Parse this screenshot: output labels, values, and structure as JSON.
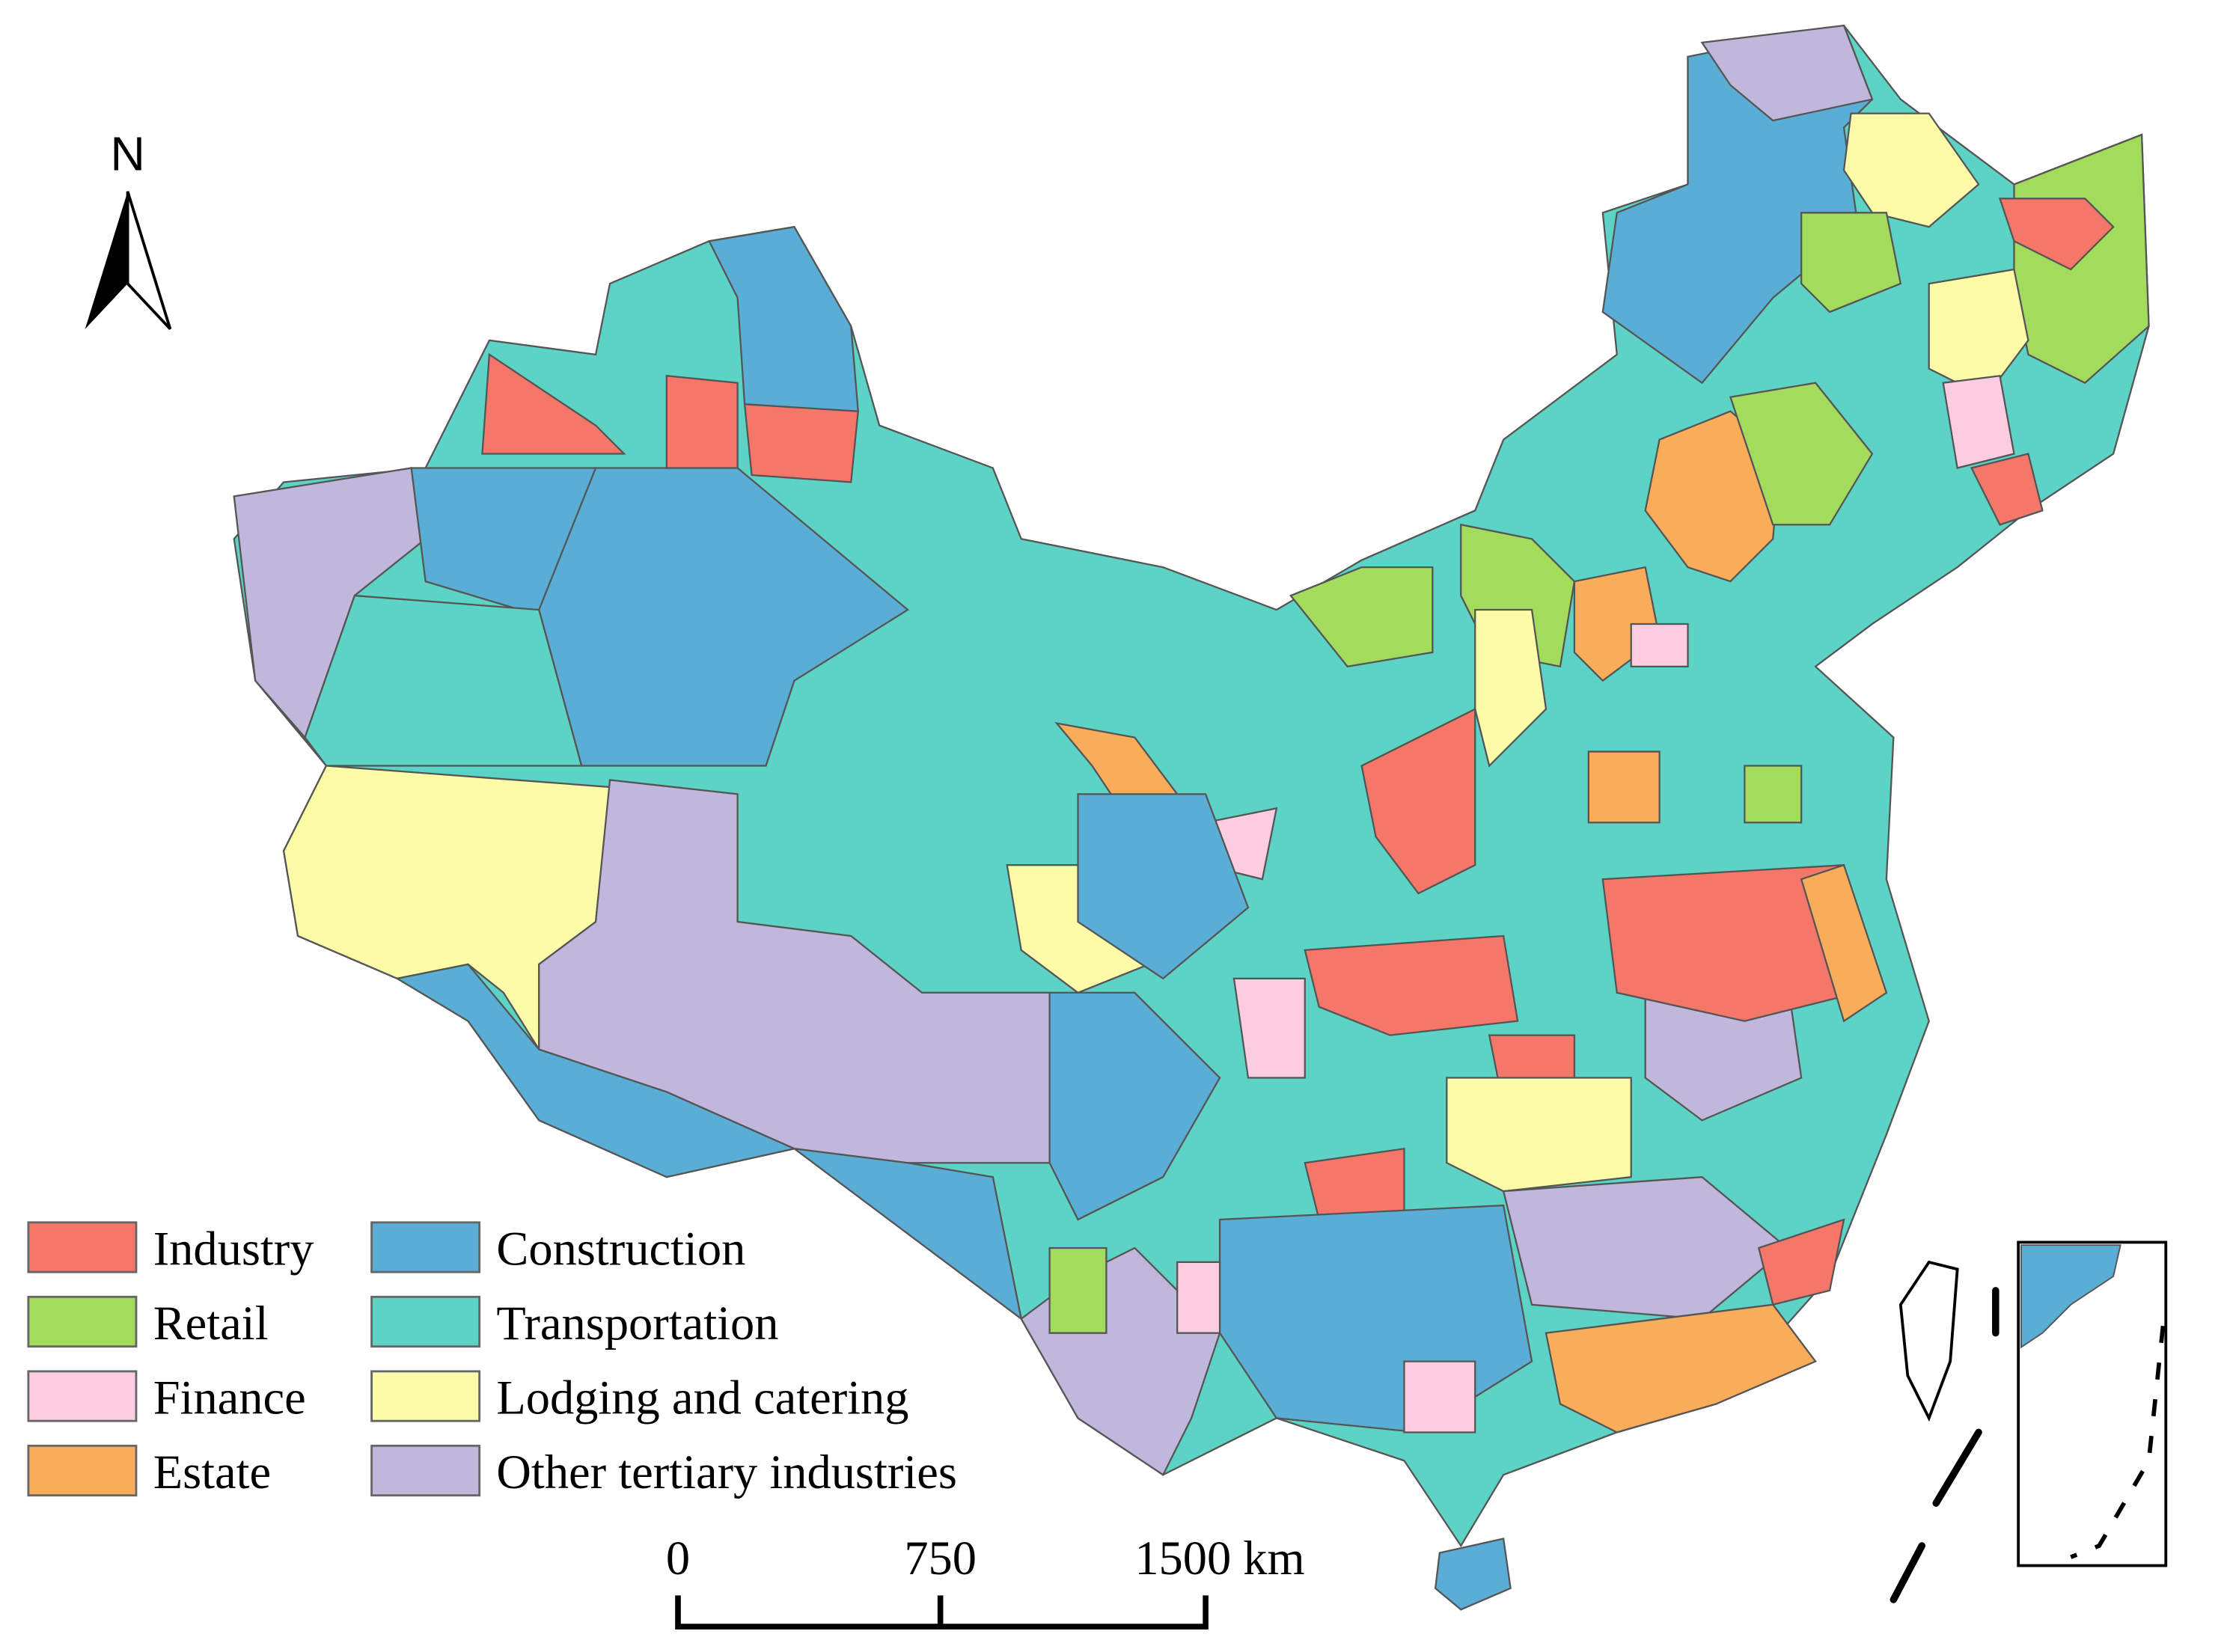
{
  "north_arrow": {
    "label": "N"
  },
  "legend": {
    "items": [
      {
        "label": "Industry",
        "color": "#f4776a"
      },
      {
        "label": "Retail",
        "color": "#a3dc5c"
      },
      {
        "label": "Finance",
        "color": "#fccde0"
      },
      {
        "label": "Estate",
        "color": "#f9ad5a"
      },
      {
        "label": "Construction",
        "color": "#5aaed6"
      },
      {
        "label": "Transportation",
        "color": "#5dd3c6"
      },
      {
        "label": "Lodging and catering",
        "color": "#fcfca8"
      },
      {
        "label": "Other tertiary industries",
        "color": "#c0b8dc"
      }
    ]
  },
  "scale_bar": {
    "labels": [
      "0",
      "750",
      "1500 km"
    ]
  }
}
